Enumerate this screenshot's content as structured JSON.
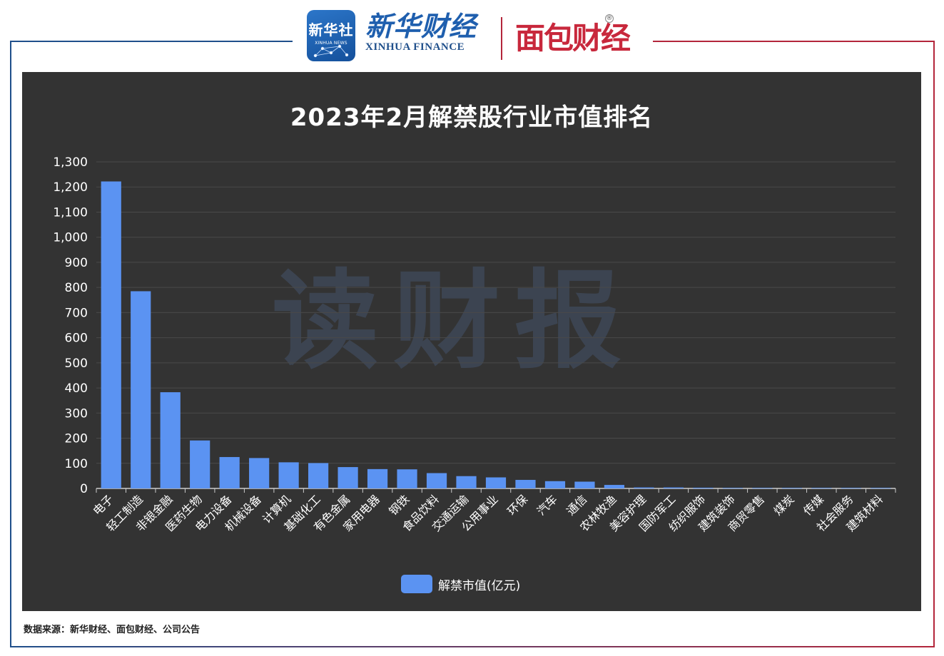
{
  "header": {
    "xinhua_news_cn": "新华社",
    "xinhua_news_en": "XINHUA NEWS",
    "xinhua_finance_cn": "新华财经",
    "xinhua_finance_en": "XINHUA FINANCE",
    "mianbao_caijing": "面包财经",
    "registered_mark": "®"
  },
  "watermark": "读财报",
  "source_note": "数据来源：新华财经、面包财经、公司公告",
  "colors": {
    "panel_bg": "#333333",
    "bar": "#5b93f2",
    "grid": "#4a4a4a",
    "axis": "#cccccc",
    "frame_blue": "#1f4f8b",
    "frame_red": "#b3263b"
  },
  "chart_data": {
    "type": "bar",
    "title": "2023年2月解禁股行业市值排名",
    "xlabel": "",
    "ylabel": "",
    "ylim": [
      0,
      1300
    ],
    "yticks": [
      "0",
      "100",
      "200",
      "300",
      "400",
      "500",
      "600",
      "700",
      "800",
      "900",
      "1,000",
      "1,100",
      "1,200",
      "1,300"
    ],
    "grid": true,
    "legend_position": "bottom-center",
    "categories": [
      "电子",
      "轻工制造",
      "非银金融",
      "医药生物",
      "电力设备",
      "机械设备",
      "计算机",
      "基础化工",
      "有色金属",
      "家用电器",
      "钢铁",
      "食品饮料",
      "交通运输",
      "公用事业",
      "环保",
      "汽车",
      "通信",
      "农林牧渔",
      "美容护理",
      "国防军工",
      "纺织服饰",
      "建筑装饰",
      "商贸零售",
      "煤炭",
      "传媒",
      "社会服务",
      "建筑材料"
    ],
    "series": [
      {
        "name": "解禁市值(亿元)",
        "values": [
          1222,
          785,
          383,
          191,
          125,
          121,
          104,
          101,
          85,
          77,
          76,
          61,
          49,
          44,
          34,
          29,
          27,
          14,
          4,
          4,
          3,
          2,
          1.5,
          0.5,
          0.3,
          0.2,
          0.1
        ]
      }
    ]
  }
}
